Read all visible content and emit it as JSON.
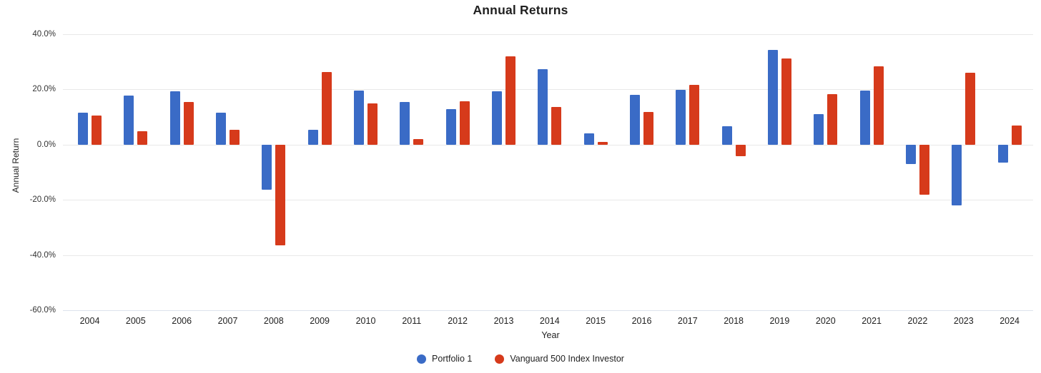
{
  "title": "Annual Returns",
  "axes": {
    "y_label": "Annual Return",
    "x_label": "Year"
  },
  "chart_data": {
    "type": "bar",
    "title": "Annual Returns",
    "xlabel": "Year",
    "ylabel": "Annual Return",
    "categories": [
      "2004",
      "2005",
      "2006",
      "2007",
      "2008",
      "2009",
      "2010",
      "2011",
      "2012",
      "2013",
      "2014",
      "2015",
      "2016",
      "2017",
      "2018",
      "2019",
      "2020",
      "2021",
      "2022",
      "2023",
      "2024"
    ],
    "series": [
      {
        "name": "Portfolio 1",
        "color": "#3a6bc6",
        "values": [
          11.6,
          17.9,
          19.4,
          11.5,
          -16.4,
          5.3,
          19.5,
          15.5,
          13.0,
          19.4,
          27.3,
          4.1,
          18.0,
          19.8,
          6.8,
          34.2,
          11.0,
          19.6,
          -7.0,
          -21.9,
          -6.5
        ]
      },
      {
        "name": "Vanguard 500 Index Investor",
        "color": "#d63a1b",
        "values": [
          10.6,
          4.8,
          15.5,
          5.3,
          -36.6,
          26.3,
          14.9,
          2.0,
          15.8,
          32.1,
          13.6,
          1.0,
          11.8,
          21.6,
          -4.2,
          31.2,
          18.3,
          28.5,
          -18.1,
          26.0,
          7.0
        ]
      }
    ],
    "ylim": [
      -60,
      40
    ],
    "y_ticks": [
      {
        "value": 40,
        "label": "40.0%"
      },
      {
        "value": 20,
        "label": "20.0%"
      },
      {
        "value": 0,
        "label": "0.0%"
      },
      {
        "value": -20,
        "label": "-20.0%"
      },
      {
        "value": -40,
        "label": "-40.0%"
      },
      {
        "value": -60,
        "label": "-60.0%"
      }
    ],
    "grid": "horizontal",
    "legend_position": "bottom"
  }
}
